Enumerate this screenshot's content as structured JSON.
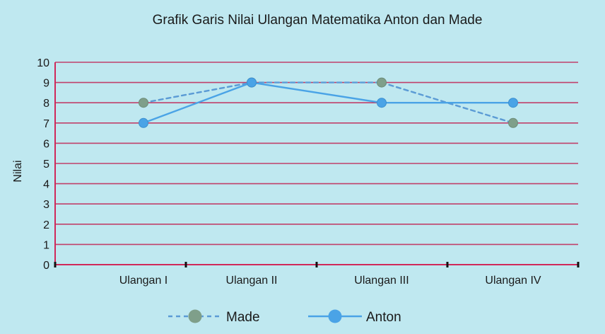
{
  "chart_data": {
    "type": "line",
    "title": "Grafik Garis Nilai Ulangan Matematika Anton dan Made",
    "xlabel": "",
    "ylabel": "Nilai",
    "categories": [
      "Ulangan I",
      "Ulangan II",
      "Ulangan III",
      "Ulangan IV"
    ],
    "y_ticks": [
      "0",
      "1",
      "2",
      "3",
      "4",
      "5",
      "6",
      "7",
      "8",
      "9",
      "10"
    ],
    "ylim": [
      0,
      10
    ],
    "grid": true,
    "legend_position": "bottom",
    "series": [
      {
        "name": "Made",
        "values": [
          8,
          9,
          9,
          7
        ],
        "style": "dashed",
        "color": "#5b9bd5",
        "marker_color": "#7f9f8a"
      },
      {
        "name": "Anton",
        "values": [
          7,
          9,
          8,
          8
        ],
        "style": "solid",
        "color": "#4aa3e6",
        "marker_color": "#4aa3e6"
      }
    ],
    "colors": {
      "background": "#bfe8f0",
      "grid": "#c0406a",
      "axis": "#d0285a"
    }
  }
}
